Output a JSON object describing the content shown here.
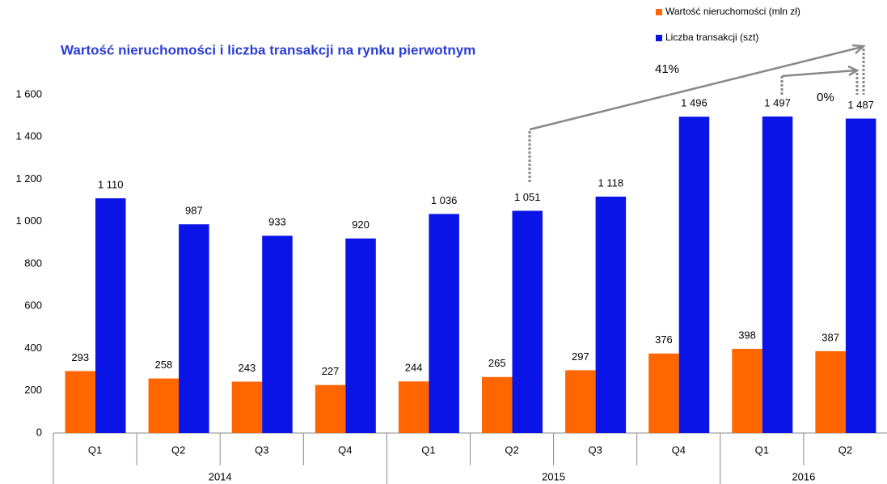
{
  "chart_data": {
    "type": "bar",
    "title": "Wartość nieruchomości i liczba transakcji na rynku pierwotnym",
    "categories": [
      "Q1",
      "Q2",
      "Q3",
      "Q4",
      "Q1",
      "Q2",
      "Q3",
      "Q4",
      "Q1",
      "Q2"
    ],
    "groups": [
      {
        "label": "2014",
        "span": 4
      },
      {
        "label": "2015",
        "span": 4
      },
      {
        "label": "2016",
        "span": 2
      }
    ],
    "series": [
      {
        "name": "Wartość nieruchomości (mln zł)",
        "color": "#ff6600",
        "values": [
          293,
          258,
          243,
          227,
          244,
          265,
          297,
          376,
          398,
          387
        ]
      },
      {
        "name": "Liczba transakcji (szt)",
        "color": "#0a14e6",
        "values": [
          1110,
          987,
          933,
          920,
          1036,
          1051,
          1118,
          1496,
          1497,
          1487
        ],
        "value_labels": [
          "1 110",
          "987",
          "933",
          "920",
          "1 036",
          "1 051",
          "1 118",
          "1 496",
          "1 497",
          "1 487"
        ]
      }
    ],
    "ylim": [
      0,
      1600
    ],
    "yticks": [
      0,
      200,
      400,
      600,
      800,
      {
        "value": 1000,
        "label": "1 000"
      },
      {
        "value": 1200,
        "label": "1 200"
      },
      {
        "value": 1400,
        "label": "1 400"
      },
      {
        "value": 1600,
        "label": "1 600"
      }
    ],
    "annotations": [
      "41%",
      "0%"
    ]
  }
}
